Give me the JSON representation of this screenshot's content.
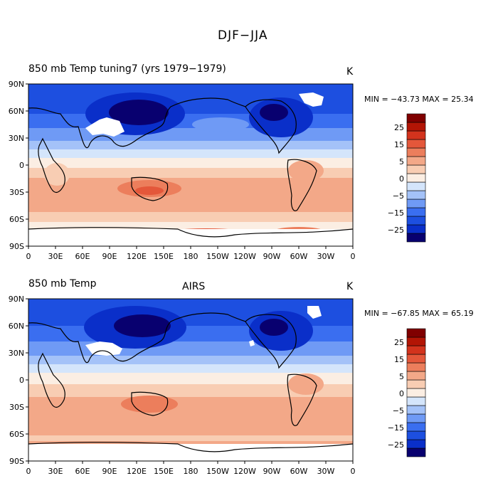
{
  "figure_title": "DJF−JJA",
  "colorbar": {
    "colors": [
      "#08006f",
      "#0a2fc9",
      "#1d4fe0",
      "#3a6ef0",
      "#6f9af5",
      "#a4c2f8",
      "#d4e5fb",
      "#fbeee3",
      "#f8cdb3",
      "#f3a888",
      "#ec7e5c",
      "#e4573a",
      "#d3331d",
      "#b31505",
      "#800000"
    ],
    "labels": [
      "25",
      "15",
      "5",
      "0",
      "−5",
      "−15",
      "−25"
    ]
  },
  "panels": [
    {
      "left_title": "850 mb Temp   tuning7 (yrs 1979−1979)",
      "center_title": "",
      "units": "K",
      "stats": "MIN = −43.73 MAX =  25.34",
      "lat_ticks": [
        "90N",
        "60N",
        "30N",
        "0",
        "30S",
        "60S",
        "90S"
      ],
      "lon_ticks": [
        "0",
        "30E",
        "60E",
        "90E",
        "120E",
        "150E",
        "180",
        "150W",
        "120W",
        "90W",
        "60W",
        "30W",
        "0"
      ]
    },
    {
      "left_title": "850 mb Temp",
      "center_title": "AIRS",
      "units": "K",
      "stats": "MIN = −67.85 MAX =  65.19",
      "lat_ticks": [
        "90N",
        "60N",
        "30N",
        "0",
        "30S",
        "60S",
        "90S"
      ],
      "lon_ticks": [
        "0",
        "30E",
        "60E",
        "90E",
        "120E",
        "150E",
        "180",
        "150W",
        "120W",
        "90W",
        "60W",
        "30W",
        "0"
      ]
    }
  ]
}
